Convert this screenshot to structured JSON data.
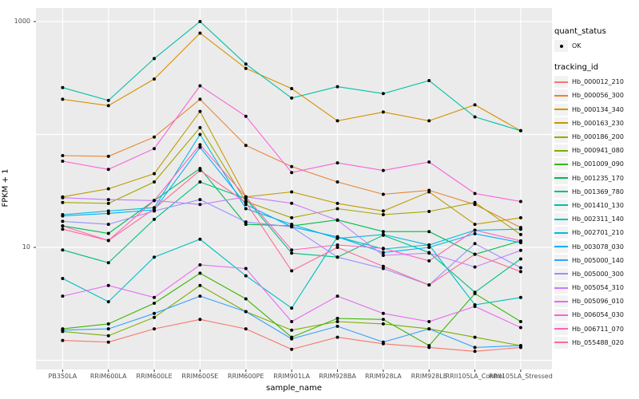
{
  "figure": {
    "xlabel": "sample_name",
    "ylabel": "FPKM + 1"
  },
  "legend": {
    "quant_title": "quant_status",
    "quant_items": [
      {
        "label": "OK"
      }
    ],
    "tracking_title": "tracking_id"
  },
  "chart_data": {
    "type": "line",
    "title": "",
    "xlabel": "sample_name",
    "ylabel": "FPKM + 1",
    "y_scale": "log10",
    "ylim": [
      0.9,
      1100
    ],
    "y_tick_labels": [
      {
        "value": 10,
        "label": "10"
      },
      {
        "value": 1000,
        "label": "1000"
      }
    ],
    "y_gridline_values": [
      1,
      10,
      100,
      1000
    ],
    "grid": true,
    "legend_position": "right",
    "panel_bg": "#EBEBEB",
    "gridline_color": "#FFFFFF",
    "point_color": "#000000",
    "tick_color": "#333333",
    "tick_label_color": "#4D4D4D",
    "x_categories": [
      "PB350LA",
      "RRIM600LA",
      "RRIM600LE",
      "RRIM600SE",
      "RRIM600PE",
      "RRIM901LA",
      "RRIM928BA",
      "RRIM928LA",
      "RRIM928LE",
      "RRII105LA_Control",
      "RRII105LA_Stressed"
    ],
    "series": [
      {
        "name": "Hb_000012_210",
        "color": "#F8766D",
        "values": [
          1.5,
          1.45,
          1.9,
          2.3,
          1.9,
          1.25,
          1.6,
          1.4,
          1.3,
          1.2,
          1.3
        ]
      },
      {
        "name": "Hb_000056_300",
        "color": "#EA8331",
        "values": [
          65,
          64,
          95,
          205,
          80,
          52,
          38,
          29.5,
          32,
          24,
          15
        ]
      },
      {
        "name": "Hb_000134_340",
        "color": "#D89000",
        "values": [
          205,
          180,
          310,
          790,
          385,
          255,
          132,
          158,
          132,
          183,
          108
        ]
      },
      {
        "name": "Hb_000163_230",
        "color": "#C09B00",
        "values": [
          28,
          33,
          45,
          160,
          28,
          31,
          24.5,
          21,
          31,
          16,
          18.3
        ]
      },
      {
        "name": "Hb_000186_200",
        "color": "#A3A500",
        "values": [
          25,
          24.5,
          38,
          115,
          25.5,
          18.3,
          22,
          19.5,
          20.8,
          25,
          13
        ]
      },
      {
        "name": "Hb_000941_080",
        "color": "#7CAE00",
        "values": [
          1.8,
          1.65,
          2.4,
          4.6,
          2.7,
          1.85,
          2.2,
          2.1,
          1.9,
          1.6,
          1.35
        ]
      },
      {
        "name": "Hb_001009_090",
        "color": "#39B600",
        "values": [
          1.9,
          2.1,
          3.2,
          5.9,
          3.5,
          1.6,
          2.35,
          2.3,
          1.35,
          3.9,
          2.2
        ]
      },
      {
        "name": "Hb_001235_170",
        "color": "#00BB4E",
        "values": [
          15.5,
          13.3,
          26,
          50,
          16,
          15.5,
          17.5,
          13.8,
          13.8,
          8.7,
          11.4
        ]
      },
      {
        "name": "Hb_001369_780",
        "color": "#00BF7D",
        "values": [
          9.5,
          7.3,
          17.7,
          38,
          27,
          8.9,
          8.2,
          12.8,
          9,
          4,
          7.9
        ]
      },
      {
        "name": "Hb_001410_130",
        "color": "#00C1A3",
        "values": [
          260,
          200,
          470,
          1000,
          420,
          210,
          265,
          230,
          300,
          143,
          108
        ]
      },
      {
        "name": "Hb_002311_140",
        "color": "#00BFC4",
        "values": [
          5.3,
          3.3,
          8.2,
          11.8,
          5.6,
          2.9,
          12.4,
          9.7,
          10.5,
          3.1,
          3.6
        ]
      },
      {
        "name": "Hb_002701_210",
        "color": "#00BAE0",
        "values": [
          19.5,
          21,
          22.5,
          100,
          22,
          16,
          12,
          13,
          10.5,
          14.2,
          14.5
        ]
      },
      {
        "name": "Hb_003078_030",
        "color": "#00B0F6",
        "values": [
          19,
          20,
          21.5,
          77,
          24,
          15.2,
          12.4,
          9,
          10,
          13.2,
          11
        ]
      },
      {
        "name": "Hb_005000_140",
        "color": "#35A2FF",
        "values": [
          1.85,
          1.9,
          2.6,
          3.7,
          2.7,
          1.55,
          2.0,
          1.45,
          1.9,
          1.3,
          1.35
        ]
      },
      {
        "name": "Hb_005000_300",
        "color": "#9590FF",
        "values": [
          17,
          16,
          21,
          26.5,
          16.8,
          15.2,
          8.2,
          6.5,
          4.65,
          10.8,
          6.6
        ]
      },
      {
        "name": "Hb_005054_310",
        "color": "#C77CFF",
        "values": [
          27.5,
          26.5,
          26,
          24,
          28,
          24.6,
          17.4,
          8.5,
          8.9,
          6.7,
          9.4
        ]
      },
      {
        "name": "Hb_005096_010",
        "color": "#E76BF3",
        "values": [
          3.7,
          4.6,
          3.6,
          7,
          6.5,
          2.2,
          3.7,
          2.6,
          2.2,
          3.0,
          1.95
        ]
      },
      {
        "name": "Hb_006054_030",
        "color": "#FA62DB",
        "values": [
          58,
          49,
          75,
          270,
          145,
          46,
          56,
          48,
          57,
          30,
          25.5
        ]
      },
      {
        "name": "Hb_006711_070",
        "color": "#FF62BC",
        "values": [
          15.5,
          11.5,
          26,
          81,
          28,
          9.5,
          10.5,
          9.8,
          7.6,
          14.2,
          11.4
        ]
      },
      {
        "name": "Hb_055488_020",
        "color": "#FF6A98",
        "values": [
          14.5,
          11.5,
          22,
          48,
          25,
          6.2,
          10,
          6.8,
          4.65,
          8.7,
          6.1
        ]
      }
    ]
  }
}
